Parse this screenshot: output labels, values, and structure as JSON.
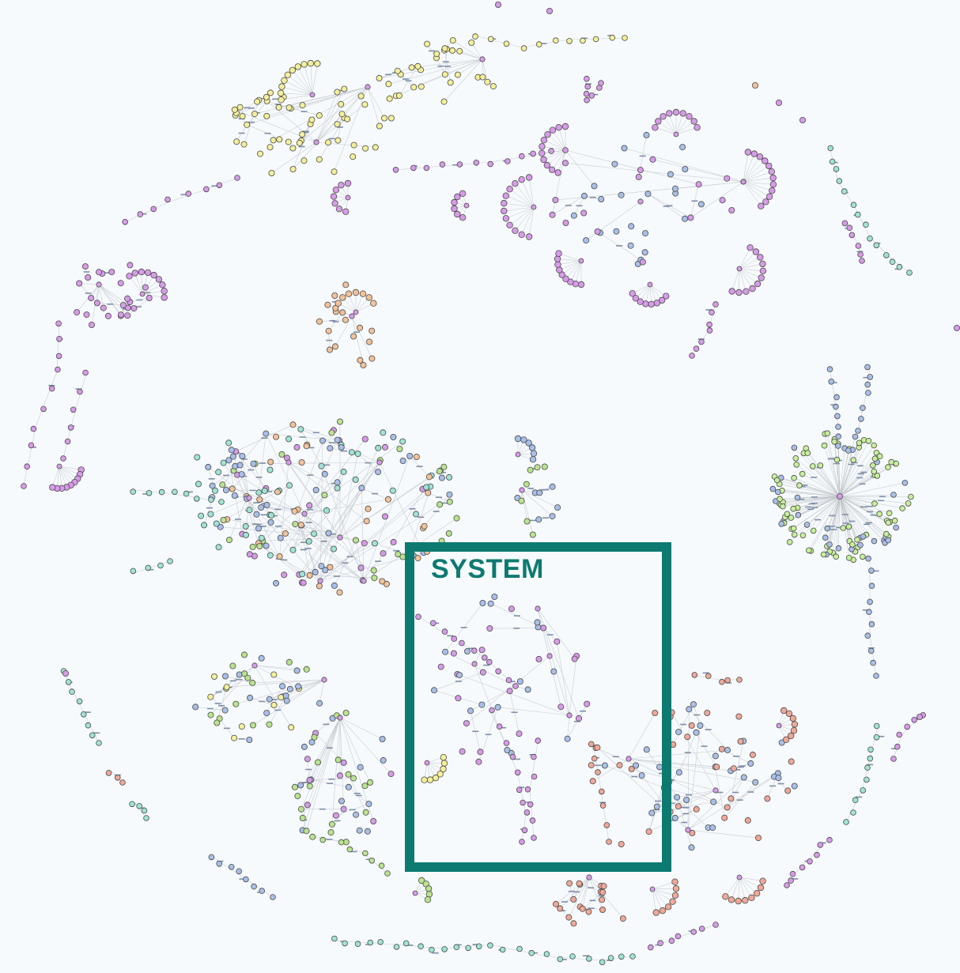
{
  "highlight": {
    "label": "SYSTEM",
    "color": "#0c7a70"
  },
  "palette": {
    "background": "#f7fafc",
    "yellow": "#f3ef9a",
    "purple": "#d79be8",
    "orange": "#f2c29a",
    "green": "#b9e38e",
    "blue": "#a9bfe8",
    "teal": "#9fe3d4",
    "salmon": "#eea898",
    "lime": "#c7ef9a",
    "hub": "#ffffff",
    "edge": "#c9cdd2"
  },
  "clusters": [
    {
      "name": "yellow-cluster-top",
      "color": "yellow"
    },
    {
      "name": "purple-cluster-top-right",
      "color": "purple"
    },
    {
      "name": "purple-cluster-left",
      "color": "purple"
    },
    {
      "name": "central-mixed-cluster",
      "color": "green"
    },
    {
      "name": "lime-blue-cluster-right",
      "color": "lime"
    },
    {
      "name": "salmon-cluster-bottom-right",
      "color": "salmon"
    },
    {
      "name": "system-cluster",
      "color": "purple"
    }
  ]
}
